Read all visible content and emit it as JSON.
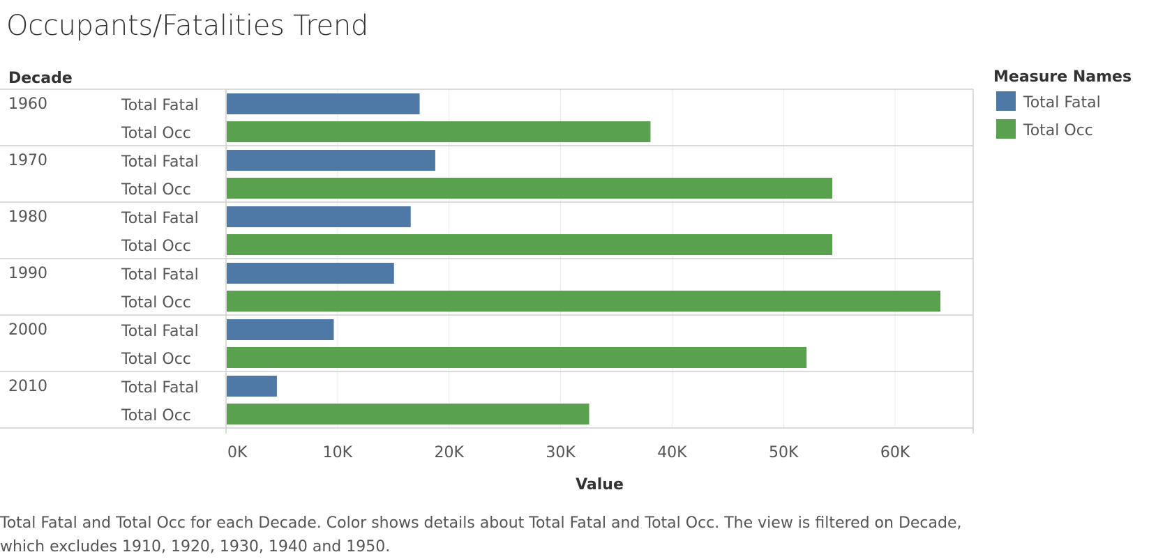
{
  "title": "Occupants/Fatalities Trend",
  "caption": "Total Fatal and Total Occ for each Decade.  Color shows details about Total Fatal and Total Occ. The view is filtered on Decade, which excludes 1910, 1920, 1930, 1940 and 1950.",
  "chart_data": {
    "type": "bar",
    "orientation": "horizontal",
    "row_header": "Decade",
    "categories": [
      "1960",
      "1970",
      "1980",
      "1990",
      "2000",
      "2010"
    ],
    "series": [
      {
        "name": "Total Fatal",
        "color": "#4e79a7",
        "values": [
          17300,
          18700,
          16500,
          15000,
          9600,
          4500
        ]
      },
      {
        "name": "Total Occ",
        "color": "#59a14f",
        "values": [
          38000,
          54300,
          54300,
          64000,
          52000,
          32500
        ]
      }
    ],
    "xlabel": "Value",
    "xlim": [
      0,
      67000
    ],
    "xticks": [
      0,
      10000,
      20000,
      30000,
      40000,
      50000,
      60000
    ],
    "xtick_labels": [
      "0K",
      "10K",
      "20K",
      "30K",
      "40K",
      "50K",
      "60K"
    ],
    "grid": true,
    "legend": {
      "title": "Measure Names",
      "position": "right",
      "entries": [
        "Total Fatal",
        "Total Occ"
      ]
    }
  }
}
